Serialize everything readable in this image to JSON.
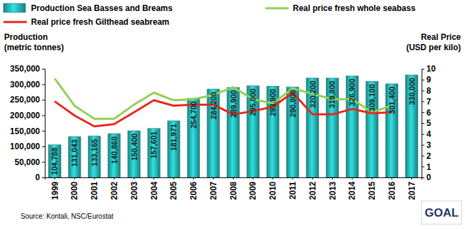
{
  "chart_data": {
    "type": "bar",
    "categories": [
      "1999",
      "2000",
      "2001",
      "2002",
      "2003",
      "2004",
      "2005",
      "2006",
      "2007",
      "2008",
      "2009",
      "2010",
      "2011",
      "2012",
      "2013",
      "2014",
      "2015",
      "2016",
      "2017"
    ],
    "series": [
      {
        "name": "Production Sea Basses and Breams",
        "type": "bar",
        "color": "#22a3a3",
        "values": [
          104788,
          131043,
          133165,
          140860,
          150400,
          157601,
          181971,
          254700,
          284200,
          289900,
          295000,
          293900,
          290800,
          320200,
          319800,
          326900,
          309100,
          301400,
          330000
        ],
        "value_labels": [
          "104,788",
          "131,043",
          "133,165",
          "140,860",
          "150,400",
          "157,601",
          "181,971",
          "254,700",
          "284,200",
          "289,900",
          "295,000",
          "293,900",
          "290,800",
          "320,200",
          "319,800",
          "326,900",
          "309,100",
          "301,400",
          "330,000"
        ]
      },
      {
        "name": "Real price fresh whole seabass",
        "type": "line",
        "axis": "y2",
        "color": "#92d050",
        "values": [
          9.1,
          6.6,
          5.4,
          5.4,
          6.7,
          7.8,
          7.1,
          7.2,
          7.6,
          8.3,
          7.2,
          6.8,
          8.2,
          7.7,
          7.2,
          7.2,
          6.0,
          6.6,
          null
        ]
      },
      {
        "name": "Real price fresh Gilthead seabream",
        "type": "line",
        "axis": "y2",
        "color": "#e8261c",
        "values": [
          7.0,
          5.7,
          4.7,
          4.9,
          6.0,
          7.1,
          6.6,
          6.7,
          6.7,
          5.8,
          6.1,
          6.5,
          7.8,
          5.8,
          5.8,
          6.3,
          5.9,
          6.0,
          null
        ]
      }
    ],
    "y_label": "Production\n(metric tonnes)",
    "y2_label": "Real Price\n(USD per kilo)",
    "ylim": [
      0,
      350000
    ],
    "yticks": [
      0,
      {
        "value": 50000,
        "label": "50,000"
      },
      {
        "value": 100000,
        "label": "100,000"
      },
      {
        "value": 150000,
        "label": "150,000"
      },
      {
        "value": 200000,
        "label": "200,000"
      },
      {
        "value": 250000,
        "label": "250,000"
      },
      {
        "value": 300000,
        "label": "300,000"
      },
      {
        "value": 350000,
        "label": "350,000"
      }
    ],
    "y2lim": [
      0,
      10
    ],
    "y2ticks": [
      0,
      1,
      2,
      3,
      4,
      5,
      6,
      7,
      8,
      9,
      10
    ],
    "grid": false,
    "legend": "top",
    "data_labels": true,
    "source": "Source: Kontali, NSC/Eurostat",
    "logo": "GOAL"
  }
}
